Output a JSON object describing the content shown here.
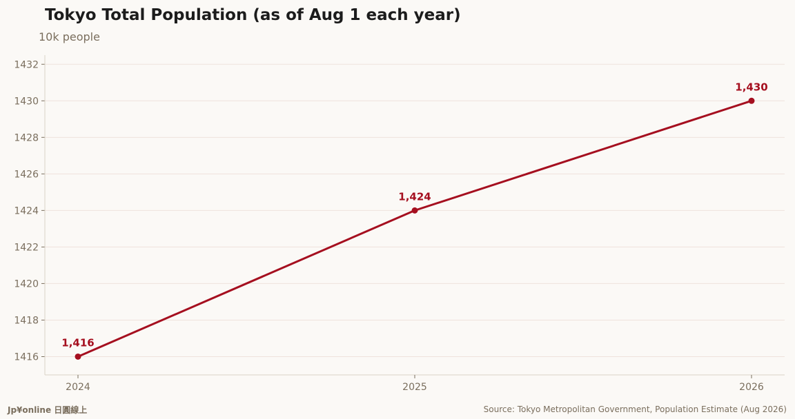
{
  "title": "Tokyo Total Population (as of Aug 1 each year)",
  "subtitle": "10k people",
  "footer": {
    "brand": "Jp¥online 日圓線上",
    "source": "Source: Tokyo Metropolitan Government, Population Estimate (Aug 2026)"
  },
  "colors": {
    "series": "#a50f1f",
    "grid": "#efe2dc",
    "axis": "#d8d2c6",
    "tick_text": "#7a6e5d"
  },
  "chart_data": {
    "type": "line",
    "categories": [
      "2024",
      "2025",
      "2026"
    ],
    "series": [
      {
        "values": [
          1416,
          1424,
          1430
        ],
        "labels": [
          "1,416",
          "1,424",
          "1,430"
        ]
      }
    ],
    "yticks": [
      "1416",
      "1418",
      "1420",
      "1422",
      "1424",
      "1426",
      "1428",
      "1430",
      "1432"
    ],
    "ylim": [
      1415,
      1432.5
    ],
    "grid": true,
    "legend": "none"
  }
}
